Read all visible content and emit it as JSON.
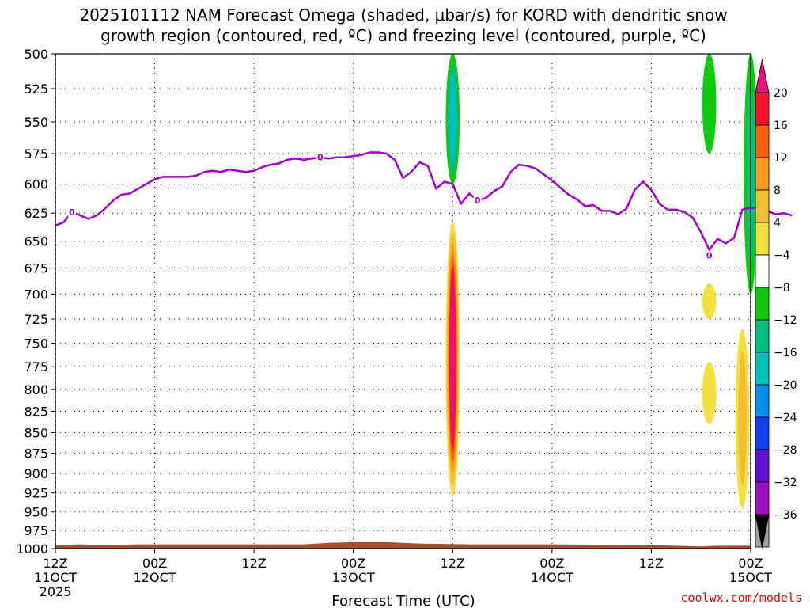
{
  "header": {
    "title_line1": "2025101112 NAM Forecast Omega (shaded, μbar/s) for KORD with dendritic snow",
    "title_line2": "growth region (contoured, red, ºC) and freezing level (contoured, purple, ºC)"
  },
  "footer": {
    "credit": "coolwx.com/models"
  },
  "chart_data": {
    "type": "heatmap",
    "title": "2025101112 NAM Forecast Omega (shaded, μbar/s) for KORD with dendritic snow growth region (contoured, red, ºC) and freezing level (contoured, purple, ºC)",
    "xlabel": "Forecast Time (UTC)",
    "ylabel": "",
    "x_unit": "forecast hour",
    "xlim": [
      0,
      84
    ],
    "y_unit": "hPa",
    "ylim": [
      1000,
      500
    ],
    "y_scale": "log-pressure",
    "grid": true,
    "yticks": [
      500,
      525,
      550,
      575,
      600,
      625,
      650,
      675,
      700,
      725,
      750,
      775,
      800,
      825,
      850,
      875,
      900,
      925,
      950,
      975,
      1000
    ],
    "xticks": [
      {
        "hour": 0,
        "line1": "12Z",
        "line2": "11OCT",
        "line3": "2025"
      },
      {
        "hour": 12,
        "line1": "00Z",
        "line2": "12OCT",
        "line3": ""
      },
      {
        "hour": 24,
        "line1": "12Z",
        "line2": "",
        "line3": ""
      },
      {
        "hour": 36,
        "line1": "00Z",
        "line2": "13OCT",
        "line3": ""
      },
      {
        "hour": 48,
        "line1": "12Z",
        "line2": "",
        "line3": ""
      },
      {
        "hour": 60,
        "line1": "00Z",
        "line2": "14OCT",
        "line3": ""
      },
      {
        "hour": 72,
        "line1": "12Z",
        "line2": "",
        "line3": ""
      },
      {
        "hour": 84,
        "line1": "00Z",
        "line2": "15OCT",
        "line3": ""
      }
    ],
    "colorbar": {
      "unit": "μbar/s",
      "levels": [
        20,
        16,
        12,
        8,
        4,
        -4,
        -8,
        -12,
        -16,
        -20,
        -24,
        -28,
        -32,
        -36
      ],
      "colors": [
        "#ff1030",
        "#ff6010",
        "#ff9a1e",
        "#f0c030",
        "#f0e040",
        "#ffffff",
        "#10c810",
        "#00c080",
        "#00c0c0",
        "#0090f0",
        "#1040f0",
        "#6010d0",
        "#a010c0",
        "#a0a0a0"
      ],
      "top_arrow_color": "#e8107a",
      "bottom_arrow_color": "#000000"
    },
    "freezing_level": {
      "name": "freezing level",
      "value_label": "0",
      "color": "#a000c8",
      "points": [
        [
          0,
          636
        ],
        [
          1,
          633
        ],
        [
          2,
          624
        ],
        [
          3,
          627
        ],
        [
          4,
          630
        ],
        [
          5,
          627
        ],
        [
          6,
          621
        ],
        [
          7,
          614
        ],
        [
          8,
          609
        ],
        [
          9,
          608
        ],
        [
          10,
          604
        ],
        [
          11,
          600
        ],
        [
          12,
          596
        ],
        [
          13,
          594
        ],
        [
          14,
          594
        ],
        [
          15,
          594
        ],
        [
          16,
          594
        ],
        [
          17,
          593
        ],
        [
          18,
          590
        ],
        [
          19,
          589
        ],
        [
          20,
          590
        ],
        [
          21,
          588
        ],
        [
          22,
          589
        ],
        [
          23,
          590
        ],
        [
          24,
          589
        ],
        [
          25,
          586
        ],
        [
          26,
          584
        ],
        [
          27,
          583
        ],
        [
          28,
          580
        ],
        [
          29,
          579
        ],
        [
          30,
          580
        ],
        [
          31,
          579
        ],
        [
          32,
          578
        ],
        [
          33,
          579
        ],
        [
          34,
          578
        ],
        [
          35,
          578
        ],
        [
          36,
          577
        ],
        [
          37,
          576
        ],
        [
          38,
          574
        ],
        [
          39,
          574
        ],
        [
          40,
          575
        ],
        [
          41,
          580
        ],
        [
          42,
          595
        ],
        [
          43,
          590
        ],
        [
          44,
          582
        ],
        [
          45,
          585
        ],
        [
          46,
          604
        ],
        [
          47,
          598
        ],
        [
          48,
          600
        ],
        [
          49,
          617
        ],
        [
          50,
          608
        ],
        [
          51,
          614
        ],
        [
          52,
          612
        ],
        [
          53,
          606
        ],
        [
          54,
          602
        ],
        [
          55,
          590
        ],
        [
          56,
          584
        ],
        [
          57,
          585
        ],
        [
          58,
          587
        ],
        [
          59,
          592
        ],
        [
          60,
          597
        ],
        [
          61,
          603
        ],
        [
          62,
          609
        ],
        [
          63,
          613
        ],
        [
          64,
          619
        ],
        [
          65,
          618
        ],
        [
          66,
          623
        ],
        [
          67,
          623
        ],
        [
          68,
          626
        ],
        [
          69,
          621
        ],
        [
          70,
          605
        ],
        [
          71,
          598
        ],
        [
          72,
          605
        ],
        [
          73,
          617
        ],
        [
          74,
          622
        ],
        [
          75,
          622
        ],
        [
          76,
          624
        ],
        [
          77,
          629
        ],
        [
          78,
          642
        ],
        [
          79,
          658
        ],
        [
          80,
          648
        ],
        [
          81,
          652
        ],
        [
          82,
          647
        ],
        [
          83,
          622
        ],
        [
          84,
          620
        ],
        [
          85,
          621
        ],
        [
          86,
          623
        ],
        [
          87,
          626
        ],
        [
          88,
          625
        ],
        [
          89,
          627
        ]
      ],
      "labels_at_hours": [
        2,
        32,
        51
      ],
      "isolated_label_at": [
        79,
        663
      ]
    },
    "omega_regions": [
      {
        "hour": 48,
        "p_top": 500,
        "p_bottom": 600,
        "value_range": [
          -12,
          -8
        ],
        "colors": [
          "#10c810",
          "#00c080",
          "#00c0c0"
        ]
      },
      {
        "hour": 48,
        "p_top": 632,
        "p_bottom": 930,
        "value_range": [
          4,
          28
        ],
        "colors": [
          "#f0e040",
          "#f0c030",
          "#ff9a1e",
          "#ff6010",
          "#ff1030",
          "#e8107a"
        ]
      },
      {
        "hour": 79,
        "p_top": 500,
        "p_bottom": 575,
        "value_range": [
          -8,
          -4
        ],
        "colors": [
          "#10c810"
        ]
      },
      {
        "hour": 79,
        "p_top": 690,
        "p_bottom": 725,
        "value_range": [
          4,
          8
        ],
        "colors": [
          "#f0e040"
        ]
      },
      {
        "hour": 79,
        "p_top": 770,
        "p_bottom": 840,
        "value_range": [
          4,
          8
        ],
        "colors": [
          "#f0e040"
        ]
      },
      {
        "hour": 84,
        "p_top": 500,
        "p_bottom": 700,
        "value_range": [
          -12,
          -4
        ],
        "colors": [
          "#10c810",
          "#00c080"
        ]
      },
      {
        "hour": 83,
        "p_top": 735,
        "p_bottom": 945,
        "value_range": [
          4,
          12
        ],
        "colors": [
          "#f0e040",
          "#f0c030"
        ]
      }
    ],
    "ground": {
      "color": "#a0522d",
      "surface_pressure": [
        [
          0,
          995
        ],
        [
          3,
          994
        ],
        [
          6,
          995
        ],
        [
          10,
          994
        ],
        [
          20,
          994
        ],
        [
          30,
          994
        ],
        [
          33,
          992
        ],
        [
          36,
          991
        ],
        [
          40,
          991
        ],
        [
          44,
          993
        ],
        [
          50,
          994
        ],
        [
          60,
          994
        ],
        [
          70,
          995
        ],
        [
          75,
          996
        ],
        [
          78,
          997
        ],
        [
          80,
          996
        ],
        [
          84,
          996
        ]
      ]
    }
  }
}
